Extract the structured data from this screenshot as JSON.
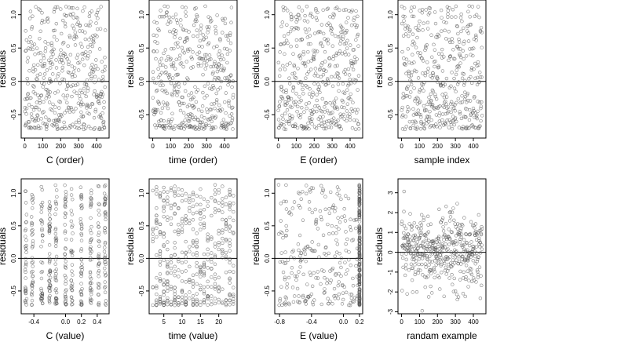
{
  "chart_data": [
    {
      "type": "scatter",
      "xlabel": "C (order)",
      "ylabel": "residuals",
      "xlim": [
        -20,
        470
      ],
      "ylim": [
        -0.85,
        1.22
      ],
      "xticks": [
        0,
        100,
        200,
        300,
        400
      ],
      "xtick_labels": [
        "0",
        "100",
        "200",
        "300",
        "400"
      ],
      "yticks": [
        -0.5,
        0,
        0.5,
        1
      ],
      "ytick_labels": [
        "-0.5",
        "0.0",
        "0.5",
        "1.0"
      ],
      "hline": 0,
      "n": 450,
      "x_kind": "index",
      "seed": 11
    },
    {
      "type": "scatter",
      "xlabel": "time (order)",
      "ylabel": "residuals",
      "xlim": [
        -20,
        470
      ],
      "ylim": [
        -0.85,
        1.22
      ],
      "xticks": [
        0,
        100,
        200,
        300,
        400
      ],
      "xtick_labels": [
        "0",
        "100",
        "200",
        "300",
        "400"
      ],
      "yticks": [
        -0.5,
        0,
        0.5,
        1
      ],
      "ytick_labels": [
        "-0.5",
        "0.0",
        "0.5",
        "1.0"
      ],
      "hline": 0,
      "n": 450,
      "x_kind": "index",
      "seed": 23
    },
    {
      "type": "scatter",
      "xlabel": "E (order)",
      "ylabel": "residuals",
      "xlim": [
        -20,
        470
      ],
      "ylim": [
        -0.85,
        1.22
      ],
      "xticks": [
        0,
        100,
        200,
        300,
        400
      ],
      "xtick_labels": [
        "0",
        "100",
        "200",
        "300",
        "400"
      ],
      "yticks": [
        -0.5,
        0,
        0.5,
        1
      ],
      "ytick_labels": [
        "-0.5",
        "0.0",
        "0.5",
        "1.0"
      ],
      "hline": 0,
      "n": 450,
      "x_kind": "index",
      "seed": 37
    },
    {
      "type": "scatter",
      "xlabel": "sample index",
      "ylabel": "residuals",
      "xlim": [
        -20,
        470
      ],
      "ylim": [
        -0.85,
        1.22
      ],
      "xticks": [
        0,
        100,
        200,
        300,
        400
      ],
      "xtick_labels": [
        "0",
        "100",
        "200",
        "300",
        "400"
      ],
      "yticks": [
        -0.5,
        0,
        0.5,
        1
      ],
      "ytick_labels": [
        "-0.5",
        "0.0",
        "0.5",
        "1.0"
      ],
      "hline": 0,
      "n": 450,
      "x_kind": "index",
      "seed": 41
    },
    {
      "type": "scatter",
      "xlabel": "C (value)",
      "ylabel": "residuals",
      "xlim": [
        -0.56,
        0.55
      ],
      "ylim": [
        -0.85,
        1.22
      ],
      "xticks": [
        -0.4,
        0,
        0.2,
        0.4
      ],
      "xtick_labels": [
        "-0.4",
        "0.0",
        "0.2",
        "0.4"
      ],
      "yticks": [
        -0.5,
        0,
        0.5,
        1
      ],
      "ytick_labels": [
        "-0.5",
        "0.0",
        "0.5",
        "1.0"
      ],
      "hline": 0,
      "n": 450,
      "x_kind": "clustered",
      "x_clusters": [
        -0.5,
        -0.42,
        -0.3,
        -0.2,
        -0.12,
        0.0,
        0.08,
        0.2,
        0.32,
        0.42,
        0.5
      ],
      "seed": 53
    },
    {
      "type": "scatter",
      "xlabel": "time (value)",
      "ylabel": "residuals",
      "xlim": [
        1,
        25
      ],
      "ylim": [
        -0.85,
        1.22
      ],
      "xticks": [
        5,
        10,
        15,
        20
      ],
      "xtick_labels": [
        "5",
        "10",
        "15",
        "20"
      ],
      "yticks": [
        -0.5,
        0,
        0.5,
        1
      ],
      "ytick_labels": [
        "-0.5",
        "0.0",
        "0.5",
        "1.0"
      ],
      "hline": 0,
      "n": 450,
      "x_kind": "uniform-int",
      "x_range": [
        2,
        24
      ],
      "seed": 67
    },
    {
      "type": "scatter",
      "xlabel": "E (value)",
      "ylabel": "residuals",
      "xlim": [
        -0.86,
        0.24
      ],
      "ylim": [
        -0.85,
        1.22
      ],
      "xticks": [
        -0.8,
        -0.4,
        0,
        0.2
      ],
      "xtick_labels": [
        "-0.8",
        "-0.4",
        "0.0",
        "0.2"
      ],
      "yticks": [
        -0.5,
        0,
        0.5,
        1
      ],
      "ytick_labels": [
        "-0.5",
        "0.0",
        "0.5",
        "1.0"
      ],
      "hline": 0,
      "n": 450,
      "x_kind": "skewed",
      "x_heavy": 0.2,
      "x_range": [
        -0.82,
        0.2
      ],
      "seed": 79
    },
    {
      "type": "scatter",
      "xlabel": "randam example",
      "ylabel": "residuals",
      "xlim": [
        -20,
        470
      ],
      "ylim": [
        -3.1,
        3.7
      ],
      "xticks": [
        0,
        100,
        200,
        300,
        400
      ],
      "xtick_labels": [
        "0",
        "100",
        "200",
        "300",
        "400"
      ],
      "yticks": [
        -3,
        -2,
        -1,
        0,
        1,
        2,
        3
      ],
      "ytick_labels": [
        "-3",
        "-2",
        "-1",
        "0",
        "1",
        "2",
        "3"
      ],
      "hline": 0,
      "n": 450,
      "x_kind": "index",
      "y_kind": "normal",
      "seed": 97
    }
  ]
}
